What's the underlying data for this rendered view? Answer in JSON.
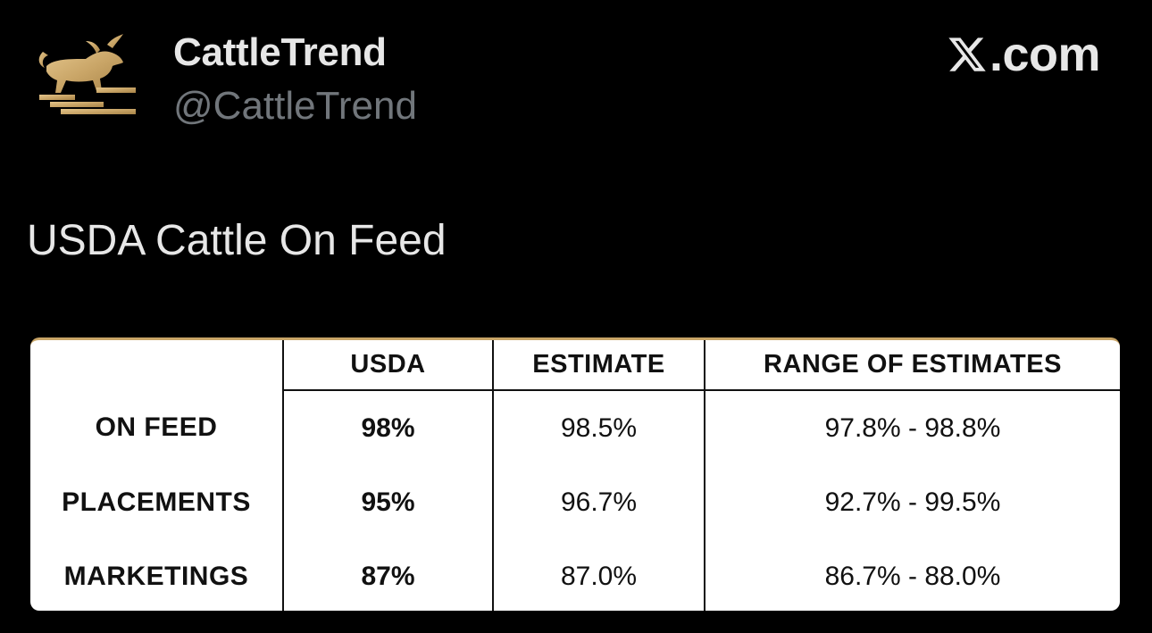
{
  "post": {
    "author": {
      "display_name": "CattleTrend",
      "handle": "@CattleTrend",
      "avatar_icon": "gold-bull-logo-icon"
    },
    "site_badge": {
      "icon": "x-logo-icon",
      "text": ".com"
    },
    "text": "USDA Cattle On Feed"
  },
  "table": {
    "headers": [
      "",
      "USDA",
      "ESTIMATE",
      "RANGE OF ESTIMATES"
    ],
    "rows": [
      {
        "label": "ON FEED",
        "usda": "98%",
        "estimate": "98.5%",
        "range": "97.8% - 98.8%"
      },
      {
        "label": "PLACEMENTS",
        "usda": "95%",
        "estimate": "96.7%",
        "range": "92.7% - 99.5%"
      },
      {
        "label": "MARKETINGS",
        "usda": "87%",
        "estimate": "87.0%",
        "range": "86.7% - 88.0%"
      }
    ]
  },
  "colors": {
    "background": "#000000",
    "text_primary": "#e7e7e7",
    "text_secondary": "#71767b",
    "brand_gold": "#c9a567"
  }
}
